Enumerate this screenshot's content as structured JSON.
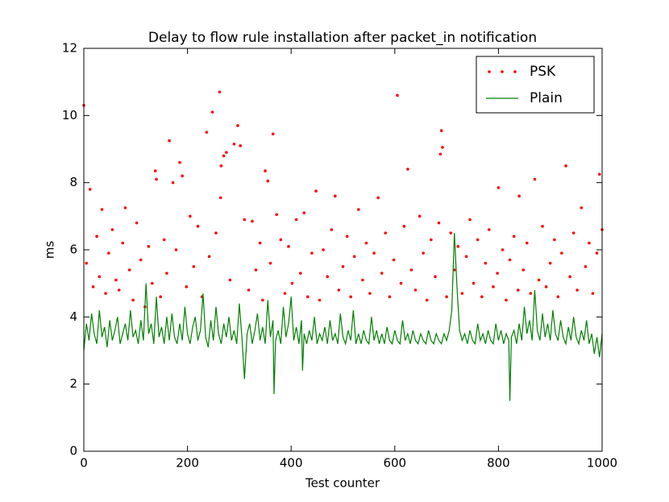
{
  "chart_data": {
    "type": "line",
    "title": "Delay to flow rule installation after packet_in notification",
    "xlabel": "Test counter",
    "ylabel": "ms",
    "xlim": [
      0,
      1000
    ],
    "xticks": [
      0,
      200,
      400,
      600,
      800,
      1000
    ],
    "ylim": [
      0,
      12
    ],
    "yticks": [
      0,
      2,
      4,
      6,
      8,
      10,
      12
    ],
    "legend": "upper right",
    "series": [
      {
        "name": "PSK",
        "color": "#ff0000",
        "style": "dots",
        "x": [
          0,
          5,
          12,
          18,
          25,
          30,
          35,
          42,
          48,
          55,
          62,
          68,
          75,
          80,
          88,
          95,
          102,
          110,
          118,
          125,
          132,
          138,
          140,
          148,
          155,
          160,
          165,
          172,
          178,
          185,
          190,
          198,
          205,
          212,
          220,
          228,
          237,
          242,
          248,
          255,
          262,
          264,
          265,
          270,
          275,
          282,
          290,
          297,
          302,
          310,
          318,
          325,
          332,
          340,
          345,
          350,
          355,
          360,
          365,
          372,
          380,
          388,
          395,
          402,
          410,
          418,
          425,
          432,
          440,
          448,
          455,
          462,
          470,
          478,
          485,
          492,
          500,
          508,
          515,
          522,
          530,
          538,
          545,
          552,
          560,
          568,
          575,
          582,
          590,
          598,
          605,
          612,
          618,
          625,
          632,
          640,
          648,
          655,
          662,
          670,
          678,
          685,
          688,
          690,
          692,
          700,
          708,
          715,
          722,
          730,
          738,
          745,
          752,
          760,
          768,
          775,
          782,
          790,
          798,
          800,
          808,
          815,
          822,
          830,
          838,
          840,
          848,
          855,
          862,
          870,
          878,
          885,
          892,
          900,
          908,
          915,
          922,
          930,
          938,
          945,
          952,
          960,
          968,
          975,
          982,
          990,
          995,
          1000
        ],
        "values": [
          10.3,
          5.6,
          7.8,
          4.9,
          6.4,
          5.2,
          7.2,
          4.7,
          5.9,
          6.6,
          5.1,
          4.8,
          6.2,
          7.25,
          5.4,
          4.5,
          6.8,
          5.7,
          4.3,
          6.1,
          5.0,
          8.35,
          8.1,
          4.6,
          6.3,
          5.3,
          9.25,
          8.0,
          6.0,
          8.6,
          8.2,
          4.9,
          7.0,
          5.5,
          6.7,
          4.6,
          9.5,
          5.8,
          10.1,
          6.5,
          10.7,
          7.55,
          8.5,
          8.8,
          8.9,
          5.1,
          9.15,
          9.7,
          9.1,
          6.9,
          4.8,
          6.85,
          5.4,
          6.2,
          4.5,
          8.35,
          8.05,
          5.6,
          9.45,
          7.05,
          6.3,
          4.7,
          6.1,
          5.0,
          6.9,
          5.3,
          7.1,
          4.6,
          5.9,
          7.75,
          4.5,
          6.0,
          5.2,
          6.6,
          7.6,
          4.8,
          5.5,
          6.4,
          4.6,
          5.8,
          7.2,
          5.1,
          6.2,
          4.7,
          5.9,
          7.55,
          5.3,
          6.5,
          4.6,
          5.7,
          10.6,
          5.0,
          6.7,
          8.4,
          5.4,
          4.8,
          7.0,
          5.9,
          4.5,
          6.3,
          5.2,
          6.8,
          8.85,
          9.55,
          9.05,
          4.6,
          6.5,
          5.4,
          6.1,
          4.7,
          5.8,
          6.9,
          5.0,
          6.3,
          4.6,
          5.6,
          6.6,
          4.9,
          5.3,
          7.85,
          6.0,
          4.5,
          5.7,
          6.4,
          4.8,
          7.6,
          5.4,
          6.2,
          4.7,
          8.1,
          5.1,
          6.7,
          4.9,
          5.6,
          6.3,
          4.6,
          5.9,
          8.5,
          5.2,
          6.5,
          4.8,
          7.25,
          5.5,
          6.2,
          4.7,
          5.9,
          8.25,
          6.6
        ]
      },
      {
        "name": "Plain",
        "color": "#008000",
        "style": "line",
        "x": [
          0,
          5,
          10,
          15,
          20,
          25,
          30,
          35,
          40,
          45,
          50,
          55,
          60,
          65,
          70,
          75,
          80,
          85,
          90,
          95,
          100,
          105,
          110,
          115,
          120,
          125,
          130,
          135,
          140,
          145,
          150,
          155,
          160,
          165,
          170,
          175,
          180,
          185,
          190,
          195,
          200,
          205,
          210,
          215,
          220,
          225,
          230,
          235,
          240,
          245,
          250,
          255,
          260,
          265,
          270,
          275,
          280,
          285,
          290,
          295,
          300,
          305,
          310,
          315,
          320,
          325,
          330,
          335,
          340,
          345,
          350,
          355,
          360,
          365,
          367,
          370,
          375,
          380,
          385,
          390,
          395,
          400,
          405,
          410,
          415,
          420,
          422,
          425,
          430,
          435,
          440,
          445,
          450,
          455,
          460,
          465,
          470,
          475,
          480,
          485,
          490,
          495,
          500,
          505,
          510,
          515,
          520,
          525,
          530,
          535,
          540,
          545,
          550,
          555,
          560,
          565,
          570,
          575,
          580,
          585,
          590,
          595,
          600,
          605,
          610,
          615,
          620,
          625,
          630,
          635,
          640,
          645,
          650,
          655,
          660,
          665,
          670,
          675,
          680,
          685,
          690,
          695,
          700,
          705,
          710,
          715,
          720,
          725,
          730,
          735,
          740,
          745,
          750,
          755,
          760,
          765,
          770,
          775,
          780,
          785,
          790,
          795,
          800,
          805,
          810,
          815,
          820,
          822,
          825,
          830,
          835,
          840,
          845,
          850,
          855,
          860,
          865,
          870,
          875,
          880,
          885,
          890,
          895,
          900,
          905,
          910,
          915,
          920,
          925,
          930,
          935,
          940,
          945,
          950,
          955,
          960,
          965,
          970,
          975,
          980,
          985,
          990,
          995,
          1000
        ],
        "values": [
          3.0,
          3.8,
          3.3,
          4.1,
          3.5,
          3.2,
          4.2,
          3.4,
          3.7,
          3.1,
          3.9,
          3.3,
          3.6,
          4.0,
          3.2,
          3.5,
          3.8,
          3.3,
          4.2,
          3.4,
          3.6,
          3.2,
          3.9,
          3.3,
          5.0,
          3.5,
          3.8,
          3.2,
          4.6,
          3.4,
          3.7,
          3.2,
          4.0,
          3.3,
          4.1,
          3.4,
          3.2,
          3.8,
          3.3,
          4.3,
          3.5,
          3.2,
          3.7,
          4.0,
          3.3,
          3.6,
          4.7,
          3.4,
          3.1,
          3.9,
          3.3,
          4.3,
          3.5,
          3.2,
          3.8,
          3.4,
          4.0,
          3.3,
          3.6,
          3.2,
          4.4,
          3.4,
          2.15,
          3.5,
          3.8,
          3.2,
          3.6,
          4.1,
          3.3,
          3.7,
          3.2,
          4.5,
          3.4,
          3.9,
          1.7,
          3.3,
          3.6,
          3.2,
          4.3,
          3.4,
          3.8,
          4.6,
          3.3,
          3.7,
          3.2,
          3.9,
          2.4,
          3.5,
          3.2,
          3.6,
          3.3,
          4.0,
          3.2,
          3.5,
          3.3,
          3.7,
          3.2,
          3.9,
          3.3,
          3.5,
          3.2,
          4.1,
          3.4,
          3.2,
          3.6,
          3.3,
          4.2,
          3.2,
          3.5,
          3.2,
          3.6,
          3.3,
          3.2,
          4.0,
          3.3,
          3.6,
          3.2,
          3.5,
          3.2,
          3.7,
          3.3,
          3.2,
          3.6,
          3.3,
          3.2,
          3.9,
          3.3,
          3.5,
          3.2,
          3.6,
          3.3,
          3.2,
          3.5,
          3.3,
          3.2,
          3.6,
          3.3,
          3.2,
          3.5,
          3.3,
          3.2,
          3.5,
          3.3,
          3.6,
          4.2,
          6.5,
          4.9,
          3.6,
          3.3,
          3.5,
          3.2,
          3.6,
          3.3,
          3.2,
          3.8,
          3.3,
          3.5,
          3.2,
          3.6,
          3.3,
          3.2,
          3.8,
          3.3,
          3.6,
          3.2,
          3.5,
          3.3,
          1.5,
          3.4,
          3.6,
          3.2,
          3.8,
          3.3,
          4.3,
          3.5,
          3.9,
          3.3,
          4.8,
          3.6,
          3.3,
          4.1,
          3.4,
          3.8,
          3.3,
          4.2,
          3.5,
          3.3,
          3.9,
          3.4,
          3.2,
          3.7,
          3.3,
          4.0,
          3.4,
          3.2,
          3.6,
          3.3,
          3.9,
          3.2,
          3.5,
          2.9,
          3.4,
          2.8,
          3.5
        ]
      }
    ]
  }
}
